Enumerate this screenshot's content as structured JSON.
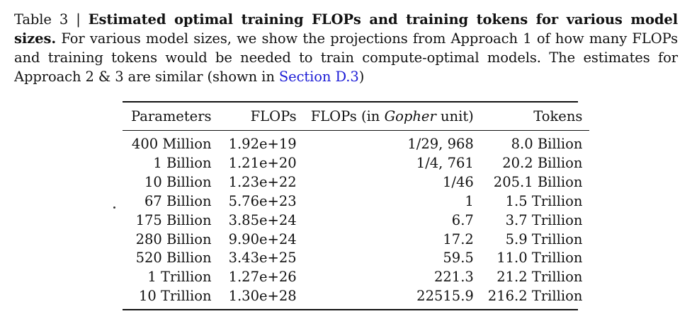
{
  "caption": {
    "label": "Table 3 | ",
    "title": "Estimated optimal training FLOPs and training tokens for various model sizes.",
    "body_1": " For various model sizes, we show the projections from Approach 1 of how many FLOPs and training tokens would be needed to train compute-optimal models. The estimates for Approach 2 & 3 are similar (shown in ",
    "link": "Section D.3",
    "body_2": ")"
  },
  "table": {
    "headers": {
      "parameters": "Parameters",
      "flops": "FLOPs",
      "gopher_prefix": "FLOPs (in ",
      "gopher_italic": "Gopher",
      "gopher_suffix": " unit)",
      "tokens": "Tokens"
    },
    "rows": [
      {
        "parameters": "400 Million",
        "flops": "1.92e+19",
        "gopher": "1/29, 968",
        "tokens": "8.0 Billion"
      },
      {
        "parameters": "1 Billion",
        "flops": "1.21e+20",
        "gopher": "1/4, 761",
        "tokens": "20.2 Billion"
      },
      {
        "parameters": "10 Billion",
        "flops": "1.23e+22",
        "gopher": "1/46",
        "tokens": "205.1 Billion"
      },
      {
        "parameters": "67 Billion",
        "flops": "5.76e+23",
        "gopher": "1",
        "tokens": "1.5 Trillion"
      },
      {
        "parameters": "175 Billion",
        "flops": "3.85e+24",
        "gopher": "6.7",
        "tokens": "3.7 Trillion"
      },
      {
        "parameters": "280 Billion",
        "flops": "9.90e+24",
        "gopher": "17.2",
        "tokens": "5.9 Trillion"
      },
      {
        "parameters": "520 Billion",
        "flops": "3.43e+25",
        "gopher": "59.5",
        "tokens": "11.0 Trillion"
      },
      {
        "parameters": "1 Trillion",
        "flops": "1.27e+26",
        "gopher": "221.3",
        "tokens": "21.2 Trillion"
      },
      {
        "parameters": "10 Trillion",
        "flops": "1.30e+28",
        "gopher": "22515.9",
        "tokens": "216.2 Trillion"
      }
    ]
  }
}
